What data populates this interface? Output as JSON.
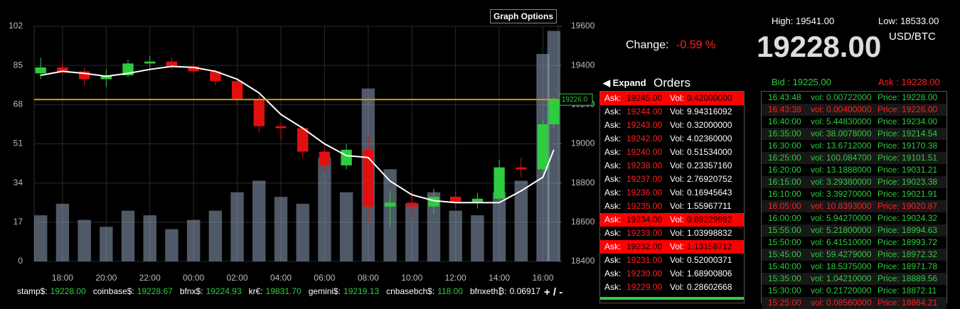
{
  "graph_options": "Graph Options",
  "header": {
    "high": "High: 19541.00",
    "low": "Low: 18533.00",
    "change_label": "Change:",
    "change_value": "-0.59 %",
    "price": "19228.00",
    "pair": "USD/BTC",
    "bid": "Bid : 19225.00",
    "ask": "Ask : 19228.00"
  },
  "orders": {
    "expand": "◀ Expand",
    "title": "Orders",
    "ask_label": "Ask:",
    "vol_label": "Vol:",
    "rows": [
      {
        "price": "19245.00",
        "vol": "0.42000000",
        "highlight": true
      },
      {
        "price": "19244.00",
        "vol": "9.94316092",
        "highlight": false
      },
      {
        "price": "19243.00",
        "vol": "0.32000000",
        "highlight": false
      },
      {
        "price": "19242.00",
        "vol": "4.02360000",
        "highlight": false
      },
      {
        "price": "19240.00",
        "vol": "0.51534000",
        "highlight": false
      },
      {
        "price": "19238.00",
        "vol": "0.23357160",
        "highlight": false
      },
      {
        "price": "19237.00",
        "vol": "2.76920752",
        "highlight": false
      },
      {
        "price": "19236.00",
        "vol": "0.16945643",
        "highlight": false
      },
      {
        "price": "19235.00",
        "vol": "1.55967711",
        "highlight": false
      },
      {
        "price": "19234.00",
        "vol": "0.89229982",
        "highlight": true
      },
      {
        "price": "19233.00",
        "vol": "1.03998832",
        "highlight": false
      },
      {
        "price": "19232.00",
        "vol": "1.13158712",
        "highlight": true
      },
      {
        "price": "19231.00",
        "vol": "0.52000371",
        "highlight": false
      },
      {
        "price": "19230.00",
        "vol": "1.68900806",
        "highlight": false
      },
      {
        "price": "19229.00",
        "vol": "0.28602668",
        "highlight": false
      }
    ]
  },
  "trades": {
    "vol_label": "vol:",
    "price_label": "Price:",
    "rows": [
      {
        "time": "16:43:48",
        "vol": "0.00722000",
        "price": "19228.00",
        "side": "buy"
      },
      {
        "time": "16:43:38",
        "vol": "0.00400000",
        "price": "19226.00",
        "side": "sell"
      },
      {
        "time": "16:40:00",
        "vol": "5.44830000",
        "price": "19234.00",
        "side": "buy"
      },
      {
        "time": "16:35:00",
        "vol": "38.0078000",
        "price": "19214.54",
        "side": "buy"
      },
      {
        "time": "16:30:00",
        "vol": "13.6712000",
        "price": "19170.38",
        "side": "buy"
      },
      {
        "time": "16:25:00",
        "vol": "100.084700",
        "price": "19101.51",
        "side": "buy"
      },
      {
        "time": "16:20:00",
        "vol": "13.1888000",
        "price": "19031.21",
        "side": "buy"
      },
      {
        "time": "16:15:00",
        "vol": "3.29380000",
        "price": "19023.38",
        "side": "buy"
      },
      {
        "time": "16:10:00",
        "vol": "3.39270000",
        "price": "19021.91",
        "side": "buy"
      },
      {
        "time": "16:05:00",
        "vol": "10.8393000",
        "price": "19020.87",
        "side": "sell"
      },
      {
        "time": "16:00:00",
        "vol": "5.94270000",
        "price": "19024.32",
        "side": "buy"
      },
      {
        "time": "15:55:00",
        "vol": "5.21800000",
        "price": "18994.63",
        "side": "buy"
      },
      {
        "time": "15:50:00",
        "vol": "6.41510000",
        "price": "18993.72",
        "side": "buy"
      },
      {
        "time": "15:45:00",
        "vol": "59.4279000",
        "price": "18972.32",
        "side": "buy"
      },
      {
        "time": "15:40:00",
        "vol": "18.5375000",
        "price": "18971.78",
        "side": "buy"
      },
      {
        "time": "15:35:00",
        "vol": "1.04210000",
        "price": "18889.56",
        "side": "buy"
      },
      {
        "time": "15:30:00",
        "vol": "0.21720000",
        "price": "18872.11",
        "side": "buy"
      },
      {
        "time": "15:25:00",
        "vol": "0.08560000",
        "price": "18864.21",
        "side": "sell"
      }
    ]
  },
  "ticker": [
    {
      "name": "stamp$:",
      "value": "19228.00"
    },
    {
      "name": "coinbase$:",
      "value": "19228.67"
    },
    {
      "name": "bfnx$:",
      "value": "19224.93"
    },
    {
      "name": "kr€:",
      "value": "19831.70"
    },
    {
      "name": "gemini$:",
      "value": "19219.13"
    },
    {
      "name": "cnbasebch$:",
      "value": "118.00"
    },
    {
      "name": "bfnxeth₿:",
      "value": "0.06917"
    }
  ],
  "zoom": "+ / -",
  "chart_data": {
    "type": "candlestick",
    "x": [
      17,
      18,
      19,
      20,
      21,
      22,
      23,
      24,
      25,
      26,
      27,
      28,
      29,
      30,
      31,
      32,
      33,
      34,
      35,
      36,
      37,
      38,
      39,
      40,
      40.5
    ],
    "open": [
      19360,
      19390,
      19370,
      19330,
      19350,
      19410,
      19420,
      19395,
      19370,
      19320,
      19230,
      19090,
      19080,
      18960,
      18890,
      18970,
      18680,
      18700,
      18680,
      18730,
      18700,
      18720,
      18880,
      18870,
      19100
    ],
    "high": [
      19440,
      19420,
      19390,
      19380,
      19430,
      19450,
      19440,
      19410,
      19380,
      19330,
      19250,
      19110,
      19090,
      18980,
      19000,
      19040,
      18760,
      18760,
      18770,
      18760,
      18750,
      18920,
      18930,
      19120,
      19240
    ],
    "low": [
      19330,
      19350,
      19300,
      19290,
      19340,
      19380,
      19380,
      19360,
      19300,
      19200,
      19060,
      19020,
      18930,
      18860,
      18870,
      18600,
      18570,
      18620,
      18640,
      18670,
      18670,
      18710,
      18830,
      18850,
      19080
    ],
    "close": [
      19390,
      19370,
      19330,
      19350,
      19410,
      19420,
      19395,
      19370,
      19320,
      19230,
      19090,
      19080,
      18960,
      18890,
      18970,
      18680,
      18700,
      18680,
      18730,
      18700,
      18720,
      18880,
      18870,
      19100,
      19228
    ],
    "ma": [
      19350,
      19370,
      19360,
      19345,
      19360,
      19380,
      19395,
      19390,
      19370,
      19330,
      19260,
      19150,
      19080,
      19000,
      18940,
      18930,
      18810,
      18740,
      18710,
      18700,
      18700,
      18700,
      18760,
      18830,
      18970
    ],
    "volume": [
      20,
      25,
      18,
      15,
      22,
      20,
      14,
      18,
      22,
      30,
      35,
      28,
      25,
      45,
      30,
      75,
      40,
      25,
      30,
      22,
      20,
      30,
      35,
      90,
      100
    ],
    "up_color": "#2ecc40",
    "down_color": "#e01010",
    "ma_color": "#ffffff",
    "volume_color": "#8fa3bb",
    "last_price": {
      "value": 19226,
      "label": "19226.0"
    },
    "xlim": [
      16.7,
      40.7
    ],
    "xticks": [
      {
        "value": 18,
        "label": "18:00"
      },
      {
        "value": 20,
        "label": "20:00"
      },
      {
        "value": 22,
        "label": "22:00"
      },
      {
        "value": 24,
        "label": "00:00"
      },
      {
        "value": 26,
        "label": "02:00"
      },
      {
        "value": 28,
        "label": "04:00"
      },
      {
        "value": 30,
        "label": "06:00"
      },
      {
        "value": 32,
        "label": "08:00"
      },
      {
        "value": 34,
        "label": "10:00"
      },
      {
        "value": 36,
        "label": "12:00"
      },
      {
        "value": 38,
        "label": "14:00"
      },
      {
        "value": 40,
        "label": "16:00"
      }
    ],
    "ylim": [
      0,
      102
    ],
    "yticks": [
      0,
      17,
      34,
      51,
      68,
      85,
      102
    ],
    "y2lim": [
      18400,
      19600
    ],
    "y2ticks": [
      18400,
      18600,
      18800,
      19000,
      19200,
      19400,
      19600
    ],
    "grid": true
  }
}
